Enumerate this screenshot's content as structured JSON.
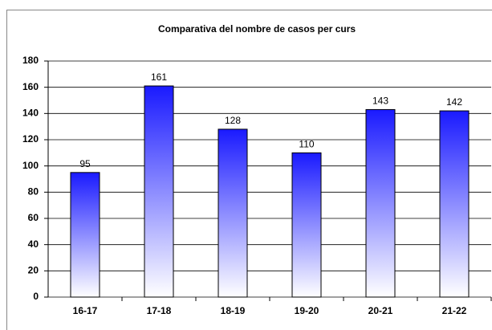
{
  "chart_data": {
    "type": "bar",
    "title": "Comparativa del nombre de casos per curs",
    "categories": [
      "16-17",
      "17-18",
      "18-19",
      "19-20",
      "20-21",
      "21-22"
    ],
    "values": [
      95,
      161,
      128,
      110,
      143,
      142
    ],
    "color": "#1a1aff",
    "ylim": [
      0,
      180
    ],
    "yticks": [
      0,
      20,
      40,
      60,
      80,
      100,
      120,
      140,
      160,
      180
    ],
    "grid": true
  }
}
